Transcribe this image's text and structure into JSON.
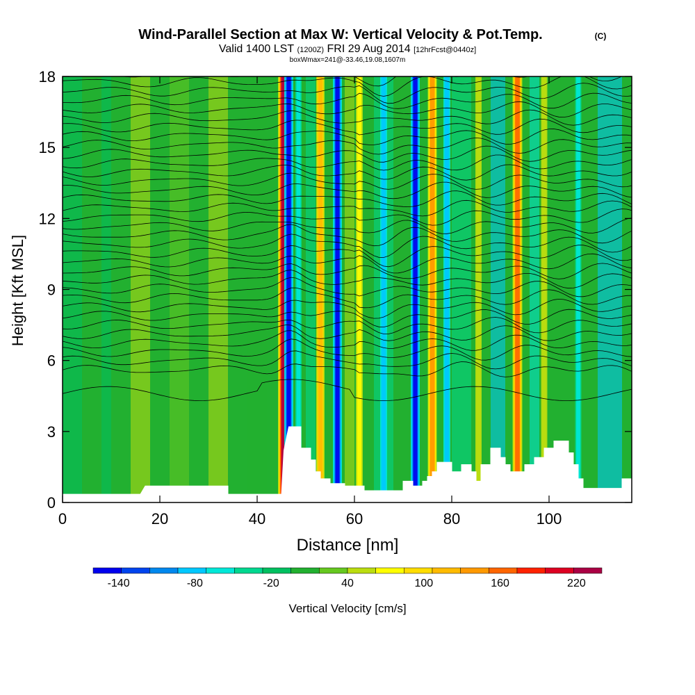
{
  "chart_data": {
    "type": "heatmap",
    "title": "Wind-Parallel Section at Max W: Vertical Velocity & Pot.Temp.",
    "title_mark": "(C)",
    "subtitle": {
      "valid": "Valid 1400 LST",
      "utc": "(1200Z)",
      "date": "FRI 29 Aug 2014",
      "forecast": "[12hrFcst@0440z]"
    },
    "box_info": "boxWmax=241@-33.46,19.08,1607m",
    "xlabel": "Distance [nm]",
    "ylabel": "Height [Kft MSL]",
    "xlim": [
      0,
      117
    ],
    "ylim": [
      0,
      18
    ],
    "x_ticks": [
      0,
      20,
      40,
      60,
      80,
      100
    ],
    "y_ticks": [
      0,
      3,
      6,
      9,
      12,
      15,
      18
    ],
    "colorbar": {
      "label": "Vertical Velocity [cm/s]",
      "tick_labels": [
        "-140",
        "-80",
        "-20",
        "40",
        "100",
        "160",
        "220"
      ],
      "tick_values": [
        -140,
        -80,
        -20,
        40,
        100,
        160,
        220
      ],
      "range": [
        -160,
        240
      ],
      "colors": [
        "#0000ee",
        "#0044ee",
        "#0088ee",
        "#00c8ff",
        "#00e8d8",
        "#00d890",
        "#00c060",
        "#22b030",
        "#66c820",
        "#bbdd10",
        "#ffff00",
        "#ffdd00",
        "#ffbb00",
        "#ff9900",
        "#ff6600",
        "#ff2200",
        "#dd0022",
        "#aa0044"
      ]
    },
    "velocity_columns": [
      {
        "x": 45.5,
        "value": 220
      },
      {
        "x": 46.5,
        "value": -140
      },
      {
        "x": 48.5,
        "value": -60
      },
      {
        "x": 53,
        "value": 120
      },
      {
        "x": 56.5,
        "value": -140
      },
      {
        "x": 61,
        "value": 80
      },
      {
        "x": 66,
        "value": -80
      },
      {
        "x": 72.5,
        "value": -140
      },
      {
        "x": 76,
        "value": 140
      },
      {
        "x": 79,
        "value": -80
      },
      {
        "x": 85.5,
        "value": 60
      },
      {
        "x": 93.5,
        "value": 160
      },
      {
        "x": 99,
        "value": 60
      },
      {
        "x": 106,
        "value": -60
      }
    ],
    "terrain_kft": [
      [
        0,
        0.35
      ],
      [
        16,
        0.35
      ],
      [
        17,
        0.7
      ],
      [
        34,
        0.7
      ],
      [
        34,
        0.35
      ],
      [
        40,
        0.35
      ],
      [
        45,
        0.35
      ],
      [
        45.5,
        2.2
      ],
      [
        46.5,
        3.2
      ],
      [
        49,
        3.2
      ],
      [
        49,
        2.3
      ],
      [
        51,
        2.3
      ],
      [
        51,
        1.8
      ],
      [
        52,
        1.8
      ],
      [
        52,
        1.3
      ],
      [
        53,
        1.3
      ],
      [
        53,
        1.0
      ],
      [
        55,
        1.0
      ],
      [
        55,
        0.8
      ],
      [
        58,
        0.8
      ],
      [
        58,
        0.7
      ],
      [
        62,
        0.7
      ],
      [
        62,
        0.5
      ],
      [
        70,
        0.5
      ],
      [
        70,
        0.9
      ],
      [
        72,
        0.9
      ],
      [
        72,
        0.7
      ],
      [
        74,
        0.7
      ],
      [
        74,
        0.9
      ],
      [
        75,
        0.9
      ],
      [
        75,
        1.1
      ],
      [
        76,
        1.1
      ],
      [
        76,
        1.3
      ],
      [
        77,
        1.3
      ],
      [
        77,
        1.7
      ],
      [
        80,
        1.7
      ],
      [
        80,
        1.3
      ],
      [
        82,
        1.3
      ],
      [
        82,
        1.6
      ],
      [
        84,
        1.6
      ],
      [
        84,
        1.3
      ],
      [
        85,
        1.3
      ],
      [
        85,
        0.9
      ],
      [
        86,
        0.9
      ],
      [
        86,
        1.6
      ],
      [
        88,
        1.6
      ],
      [
        88,
        2.3
      ],
      [
        90,
        2.3
      ],
      [
        90,
        1.9
      ],
      [
        91,
        1.9
      ],
      [
        91,
        1.6
      ],
      [
        92,
        1.6
      ],
      [
        92,
        1.3
      ],
      [
        95,
        1.3
      ],
      [
        95,
        1.6
      ],
      [
        97,
        1.6
      ],
      [
        97,
        1.9
      ],
      [
        99,
        1.9
      ],
      [
        99,
        2.3
      ],
      [
        101,
        2.3
      ],
      [
        101,
        2.6
      ],
      [
        104,
        2.6
      ],
      [
        104,
        2.1
      ],
      [
        105,
        2.1
      ],
      [
        105,
        1.6
      ],
      [
        106,
        1.6
      ],
      [
        106,
        1.0
      ],
      [
        107,
        1.0
      ],
      [
        107,
        0.6
      ],
      [
        115,
        0.6
      ],
      [
        115,
        1.0
      ],
      [
        117,
        1.0
      ]
    ]
  }
}
